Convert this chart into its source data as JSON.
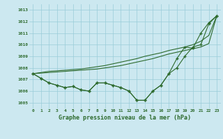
{
  "x": [
    0,
    1,
    2,
    3,
    4,
    5,
    6,
    7,
    8,
    9,
    10,
    11,
    12,
    13,
    14,
    15,
    16,
    17,
    18,
    19,
    20,
    21,
    22,
    23
  ],
  "series_main": [
    1007.5,
    1007.1,
    1006.7,
    1006.5,
    1006.3,
    1006.4,
    1006.1,
    1006.0,
    1006.7,
    1006.7,
    1006.5,
    1006.3,
    1006.0,
    1005.2,
    1005.2,
    1006.0,
    1006.5,
    1007.5,
    1008.0,
    1009.0,
    1009.8,
    1010.0,
    1011.8,
    1012.5
  ],
  "series_upper": [
    1007.5,
    1007.1,
    1006.7,
    1006.5,
    1006.3,
    1006.4,
    1006.1,
    1006.0,
    1006.7,
    1006.7,
    1006.5,
    1006.3,
    1006.0,
    1005.2,
    1005.2,
    1006.0,
    1006.5,
    1007.5,
    1008.8,
    1009.8,
    1009.7,
    1011.0,
    1011.9,
    1012.5
  ],
  "series_smooth1": [
    1007.5,
    1007.6,
    1007.7,
    1007.75,
    1007.8,
    1007.85,
    1007.9,
    1008.0,
    1008.1,
    1008.2,
    1008.35,
    1008.5,
    1008.65,
    1008.8,
    1009.0,
    1009.15,
    1009.3,
    1009.5,
    1009.65,
    1009.8,
    1010.0,
    1010.3,
    1010.8,
    1012.5
  ],
  "series_smooth2": [
    1007.5,
    1007.55,
    1007.6,
    1007.65,
    1007.7,
    1007.75,
    1007.8,
    1007.85,
    1007.9,
    1008.0,
    1008.1,
    1008.2,
    1008.35,
    1008.5,
    1008.65,
    1008.8,
    1009.0,
    1009.2,
    1009.35,
    1009.5,
    1009.65,
    1009.8,
    1010.1,
    1012.5
  ],
  "ylim": [
    1004.5,
    1013.5
  ],
  "yticks": [
    1005,
    1006,
    1007,
    1008,
    1009,
    1010,
    1011,
    1012,
    1013
  ],
  "xlabel": "Graphe pression niveau de la mer (hPa)",
  "line_color": "#2d6a2d",
  "bg_color": "#cce8f0",
  "grid_color": "#99ccd9"
}
